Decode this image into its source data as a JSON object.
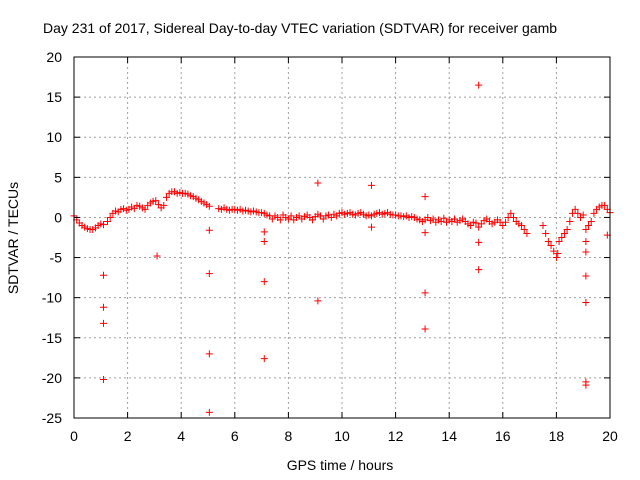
{
  "chart_data": {
    "type": "scatter",
    "title": "Day 231 of 2017, Sidereal Day-to-day VTEC variation (SDTVAR) for receiver gamb",
    "xlabel": "GPS time / hours",
    "ylabel": "SDTVAR / TECUs",
    "xlim": [
      0,
      20
    ],
    "ylim": [
      -25,
      20
    ],
    "xticks": [
      0,
      2,
      4,
      6,
      8,
      10,
      12,
      14,
      16,
      18,
      20
    ],
    "yticks": [
      -25,
      -20,
      -15,
      -10,
      -5,
      0,
      5,
      10,
      15,
      20
    ],
    "grid": true,
    "marker": "+",
    "marker_color": "#ff0000",
    "series": [
      {
        "name": "SDTVAR",
        "points": [
          [
            0.0,
            0.2
          ],
          [
            0.1,
            -0.3
          ],
          [
            0.2,
            -0.7
          ],
          [
            0.3,
            -1.0
          ],
          [
            0.4,
            -1.2
          ],
          [
            0.5,
            -1.4
          ],
          [
            0.6,
            -1.5
          ],
          [
            0.7,
            -1.5
          ],
          [
            0.8,
            -1.3
          ],
          [
            0.9,
            -1.0
          ],
          [
            1.0,
            -0.8
          ],
          [
            1.1,
            -0.9
          ],
          [
            1.25,
            -0.5
          ],
          [
            1.35,
            0.0
          ],
          [
            1.45,
            0.5
          ],
          [
            1.55,
            0.8
          ],
          [
            1.65,
            0.7
          ],
          [
            1.75,
            1.0
          ],
          [
            1.85,
            1.1
          ],
          [
            1.95,
            0.9
          ],
          [
            2.05,
            1.0
          ],
          [
            2.15,
            1.3
          ],
          [
            2.25,
            1.1
          ],
          [
            2.35,
            1.5
          ],
          [
            2.45,
            1.4
          ],
          [
            2.55,
            1.2
          ],
          [
            2.65,
            1.0
          ],
          [
            2.75,
            1.5
          ],
          [
            2.85,
            1.8
          ],
          [
            2.95,
            2.0
          ],
          [
            3.05,
            2.1
          ],
          [
            3.15,
            1.6
          ],
          [
            3.25,
            1.2
          ],
          [
            3.35,
            1.5
          ],
          [
            3.45,
            2.5
          ],
          [
            3.55,
            3.0
          ],
          [
            3.65,
            3.2
          ],
          [
            3.75,
            3.2
          ],
          [
            3.85,
            3.0
          ],
          [
            3.95,
            3.1
          ],
          [
            4.05,
            3.0
          ],
          [
            4.15,
            3.0
          ],
          [
            4.25,
            2.9
          ],
          [
            4.35,
            2.7
          ],
          [
            4.45,
            2.6
          ],
          [
            4.55,
            2.4
          ],
          [
            4.65,
            2.2
          ],
          [
            4.75,
            2.0
          ],
          [
            4.85,
            1.8
          ],
          [
            4.95,
            1.6
          ],
          [
            5.05,
            1.4
          ],
          [
            5.4,
            1.1
          ],
          [
            5.5,
            1.0
          ],
          [
            5.6,
            1.2
          ],
          [
            5.7,
            1.0
          ],
          [
            5.8,
            0.9
          ],
          [
            5.9,
            1.0
          ],
          [
            6.0,
            1.0
          ],
          [
            6.1,
            0.9
          ],
          [
            6.2,
            1.0
          ],
          [
            6.3,
            0.8
          ],
          [
            6.4,
            0.9
          ],
          [
            6.5,
            0.8
          ],
          [
            6.6,
            0.7
          ],
          [
            6.7,
            0.8
          ],
          [
            6.8,
            0.7
          ],
          [
            6.9,
            0.6
          ],
          [
            7.0,
            0.6
          ],
          [
            7.1,
            0.5
          ],
          [
            7.2,
            0.3
          ],
          [
            7.3,
            0.2
          ],
          [
            7.4,
            -0.2
          ],
          [
            7.5,
            0.2
          ],
          [
            7.6,
            0.0
          ],
          [
            7.7,
            -0.3
          ],
          [
            7.8,
            0.3
          ],
          [
            7.9,
            0.0
          ],
          [
            8.0,
            -0.2
          ],
          [
            8.1,
            0.2
          ],
          [
            8.2,
            -0.3
          ],
          [
            8.3,
            0.0
          ],
          [
            8.4,
            0.2
          ],
          [
            8.5,
            -0.2
          ],
          [
            8.6,
            0.1
          ],
          [
            8.7,
            0.3
          ],
          [
            8.8,
            0.0
          ],
          [
            8.9,
            -0.3
          ],
          [
            9.0,
            0.1
          ],
          [
            9.1,
            0.4
          ],
          [
            9.2,
            0.2
          ],
          [
            9.3,
            -0.2
          ],
          [
            9.4,
            0.2
          ],
          [
            9.5,
            0.3
          ],
          [
            9.6,
            0.0
          ],
          [
            9.7,
            0.4
          ],
          [
            9.8,
            0.2
          ],
          [
            9.9,
            0.5
          ],
          [
            10.0,
            0.6
          ],
          [
            10.1,
            0.4
          ],
          [
            10.2,
            0.5
          ],
          [
            10.3,
            0.6
          ],
          [
            10.4,
            0.4
          ],
          [
            10.5,
            0.3
          ],
          [
            10.6,
            0.5
          ],
          [
            10.7,
            0.6
          ],
          [
            10.8,
            0.4
          ],
          [
            10.9,
            0.2
          ],
          [
            11.0,
            0.3
          ],
          [
            11.1,
            0.2
          ],
          [
            11.2,
            0.4
          ],
          [
            11.3,
            0.5
          ],
          [
            11.4,
            0.6
          ],
          [
            11.5,
            0.4
          ],
          [
            11.6,
            0.5
          ],
          [
            11.7,
            0.6
          ],
          [
            11.8,
            0.4
          ],
          [
            11.9,
            0.3
          ],
          [
            12.0,
            0.3
          ],
          [
            12.1,
            0.2
          ],
          [
            12.2,
            0.2
          ],
          [
            12.3,
            0.1
          ],
          [
            12.4,
            0.2
          ],
          [
            12.5,
            0.0
          ],
          [
            12.6,
            0.1
          ],
          [
            12.7,
            0.0
          ],
          [
            12.8,
            -0.2
          ],
          [
            12.9,
            -0.3
          ],
          [
            13.0,
            -0.5
          ],
          [
            13.1,
            -0.3
          ],
          [
            13.2,
            0.0
          ],
          [
            13.3,
            -0.4
          ],
          [
            13.4,
            -0.2
          ],
          [
            13.5,
            -0.6
          ],
          [
            13.6,
            -0.3
          ],
          [
            13.7,
            -0.5
          ],
          [
            13.8,
            -0.1
          ],
          [
            13.9,
            -0.6
          ],
          [
            14.0,
            -0.3
          ],
          [
            14.1,
            -0.5
          ],
          [
            14.2,
            -0.2
          ],
          [
            14.3,
            -0.6
          ],
          [
            14.4,
            -0.4
          ],
          [
            14.5,
            -0.2
          ],
          [
            14.6,
            -0.5
          ],
          [
            14.7,
            -0.8
          ],
          [
            14.8,
            -1.0
          ],
          [
            14.9,
            -0.6
          ],
          [
            15.0,
            -0.7
          ],
          [
            15.1,
            -1.2
          ],
          [
            15.2,
            -0.8
          ],
          [
            15.3,
            -0.4
          ],
          [
            15.4,
            -0.2
          ],
          [
            15.5,
            -0.5
          ],
          [
            15.6,
            -0.8
          ],
          [
            15.7,
            -0.6
          ],
          [
            15.8,
            -0.3
          ],
          [
            15.9,
            -0.6
          ],
          [
            16.0,
            -1.0
          ],
          [
            16.1,
            -0.6
          ],
          [
            16.2,
            0.0
          ],
          [
            16.3,
            0.5
          ],
          [
            16.4,
            0.0
          ],
          [
            16.5,
            -0.5
          ],
          [
            16.6,
            -0.8
          ],
          [
            16.7,
            -1.0
          ],
          [
            16.8,
            -1.5
          ],
          [
            16.9,
            -2.0
          ],
          [
            17.5,
            -1.0
          ],
          [
            17.6,
            -2.0
          ],
          [
            17.7,
            -3.0
          ],
          [
            17.8,
            -3.5
          ],
          [
            17.9,
            -4.2
          ],
          [
            18.0,
            -5.0
          ],
          [
            18.05,
            -4.5
          ],
          [
            18.1,
            -3.0
          ],
          [
            18.2,
            -2.5
          ],
          [
            18.3,
            -2.0
          ],
          [
            18.4,
            -1.5
          ],
          [
            18.5,
            -0.5
          ],
          [
            18.6,
            0.5
          ],
          [
            18.7,
            1.0
          ],
          [
            18.8,
            0.5
          ],
          [
            18.9,
            0.0
          ],
          [
            19.0,
            0.3
          ],
          [
            19.1,
            -1.5
          ],
          [
            19.2,
            -1.0
          ],
          [
            19.3,
            -0.5
          ],
          [
            19.4,
            0.5
          ],
          [
            19.5,
            1.0
          ],
          [
            19.6,
            1.3
          ],
          [
            19.7,
            1.5
          ],
          [
            19.8,
            1.5
          ],
          [
            19.9,
            1.0
          ],
          [
            20.0,
            0.6
          ],
          [
            1.1,
            -7.2
          ],
          [
            1.1,
            -11.2
          ],
          [
            1.1,
            -13.2
          ],
          [
            1.1,
            -20.2
          ],
          [
            3.1,
            -4.8
          ],
          [
            5.05,
            -1.6
          ],
          [
            5.05,
            -7.0
          ],
          [
            5.05,
            -17.0
          ],
          [
            5.05,
            -24.3
          ],
          [
            7.1,
            -1.8
          ],
          [
            7.1,
            -3.0
          ],
          [
            7.1,
            -8.0
          ],
          [
            7.1,
            -17.6
          ],
          [
            9.1,
            4.3
          ],
          [
            9.1,
            -10.4
          ],
          [
            11.1,
            4.0
          ],
          [
            11.1,
            -1.2
          ],
          [
            13.1,
            2.6
          ],
          [
            13.1,
            -1.9
          ],
          [
            13.1,
            -9.4
          ],
          [
            13.1,
            -13.9
          ],
          [
            15.1,
            16.5
          ],
          [
            15.1,
            -3.1
          ],
          [
            15.1,
            -6.5
          ],
          [
            19.1,
            -3.0
          ],
          [
            19.1,
            -4.3
          ],
          [
            19.1,
            -7.3
          ],
          [
            19.1,
            -10.6
          ],
          [
            19.1,
            -20.5
          ],
          [
            19.1,
            -20.9
          ],
          [
            19.9,
            -2.2
          ]
        ]
      }
    ]
  }
}
